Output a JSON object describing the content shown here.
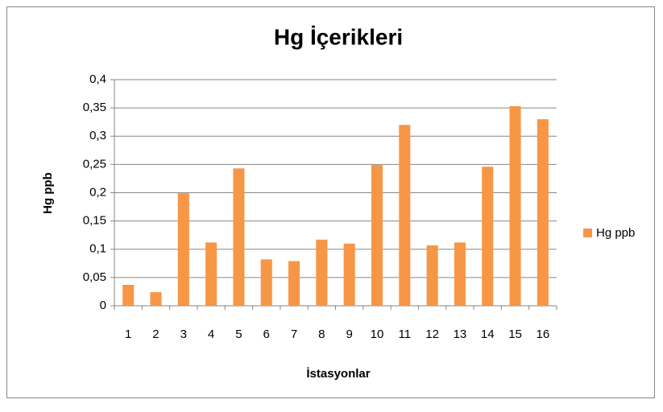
{
  "chart_data": {
    "type": "bar",
    "title": "Hg İçerikleri",
    "x_label": "İstasyonlar",
    "y_label": "Hg ppb",
    "categories": [
      "1",
      "2",
      "3",
      "4",
      "5",
      "6",
      "7",
      "8",
      "9",
      "10",
      "11",
      "12",
      "13",
      "14",
      "15",
      "16"
    ],
    "series": [
      {
        "name": "Hg ppb",
        "color": "#f79646",
        "values": [
          0.037,
          0.024,
          0.199,
          0.112,
          0.243,
          0.082,
          0.079,
          0.117,
          0.11,
          0.249,
          0.32,
          0.107,
          0.112,
          0.246,
          0.353,
          0.33
        ]
      }
    ],
    "ylim": [
      0,
      0.4
    ],
    "yticks": [
      0,
      {
        "value": 0.05,
        "label": "0,05"
      },
      {
        "value": 0.1,
        "label": "0,1"
      },
      {
        "value": 0.15,
        "label": "0,15"
      },
      {
        "value": 0.2,
        "label": "0,2"
      },
      {
        "value": 0.25,
        "label": "0,25"
      },
      {
        "value": 0.3,
        "label": "0,3"
      },
      {
        "value": 0.35,
        "label": "0,35"
      },
      {
        "value": 0.4,
        "label": "0,4"
      }
    ],
    "grid": true,
    "legend": "right"
  }
}
